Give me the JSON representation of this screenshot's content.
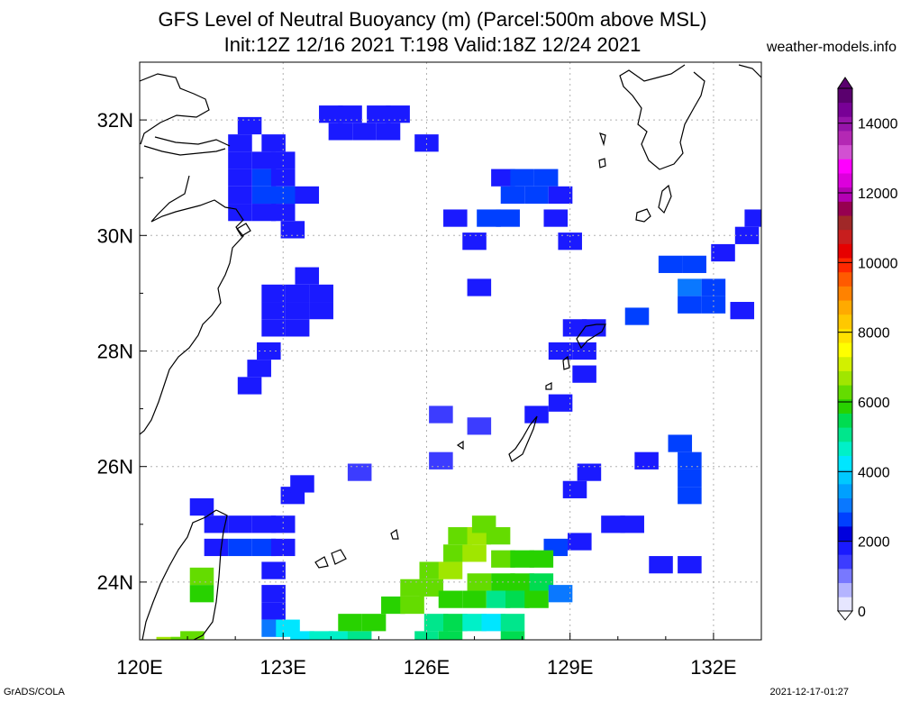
{
  "title_line1": "GFS Level of Neutral Buoyancy (m) (Parcel:500m above MSL)",
  "title_line2": "Init:12Z 12/16 2021 T:198 Valid:18Z 12/24 2021",
  "site": "weather-models.info",
  "footer_left": "GrADS/COLA",
  "footer_right": "2021-12-17-01:27",
  "lat_labels": [
    "32N",
    "30N",
    "28N",
    "26N",
    "24N"
  ],
  "lon_labels": [
    "120E",
    "123E",
    "126E",
    "129E",
    "132E"
  ],
  "colorbar": {
    "labels": [
      "14000",
      "12000",
      "10000",
      "8000",
      "6000",
      "4000",
      "2000",
      "0"
    ],
    "colors": [
      "#e6e6ff",
      "#b4b4ff",
      "#7878ff",
      "#3c3cff",
      "#1a1aff",
      "#0000dd",
      "#0040ff",
      "#0a78ff",
      "#00a0ff",
      "#00c8ff",
      "#00e6ff",
      "#00f0c8",
      "#00e68c",
      "#00dc50",
      "#28d200",
      "#64dc00",
      "#a0e600",
      "#d2f000",
      "#ffff00",
      "#ffe100",
      "#ffc800",
      "#ffaa00",
      "#ff8200",
      "#ff5a00",
      "#ff2800",
      "#e60000",
      "#c81e1e",
      "#a02828",
      "#960050",
      "#b400b4",
      "#dc00dc",
      "#ff00ff",
      "#d250d2",
      "#b428b4",
      "#9614aa",
      "#780096",
      "#5a006e"
    ]
  },
  "map": {
    "lon_range": [
      120,
      133
    ],
    "lat_range": [
      23,
      33
    ],
    "cells": [
      {
        "lat": 31.9,
        "lon": 122.3,
        "c": "#1a1aff"
      },
      {
        "lat": 31.6,
        "lon": 122.1,
        "c": "#1a1aff"
      },
      {
        "lat": 31.6,
        "lon": 122.8,
        "c": "#1a1aff"
      },
      {
        "lat": 31.3,
        "lon": 122.1,
        "c": "#1a1aff"
      },
      {
        "lat": 31.3,
        "lon": 122.6,
        "c": "#1a1aff"
      },
      {
        "lat": 31.3,
        "lon": 123.0,
        "c": "#1a1aff"
      },
      {
        "lat": 31.0,
        "lon": 122.1,
        "c": "#1a1aff"
      },
      {
        "lat": 31.0,
        "lon": 122.6,
        "c": "#0040ff"
      },
      {
        "lat": 31.0,
        "lon": 123.0,
        "c": "#1a1aff"
      },
      {
        "lat": 30.7,
        "lon": 122.1,
        "c": "#1a1aff"
      },
      {
        "lat": 30.7,
        "lon": 122.6,
        "c": "#0040ff"
      },
      {
        "lat": 30.7,
        "lon": 123.0,
        "c": "#0040ff"
      },
      {
        "lat": 30.7,
        "lon": 123.5,
        "c": "#1a1aff"
      },
      {
        "lat": 30.4,
        "lon": 122.1,
        "c": "#1a1aff"
      },
      {
        "lat": 30.4,
        "lon": 122.6,
        "c": "#1a1aff"
      },
      {
        "lat": 30.4,
        "lon": 123.0,
        "c": "#1a1aff"
      },
      {
        "lat": 30.1,
        "lon": 123.2,
        "c": "#1a1aff"
      },
      {
        "lat": 32.1,
        "lon": 124.0,
        "c": "#1a1aff"
      },
      {
        "lat": 32.1,
        "lon": 124.4,
        "c": "#1a1aff"
      },
      {
        "lat": 32.1,
        "lon": 125.0,
        "c": "#1a1aff"
      },
      {
        "lat": 32.1,
        "lon": 125.4,
        "c": "#1a1aff"
      },
      {
        "lat": 31.8,
        "lon": 124.2,
        "c": "#1a1aff"
      },
      {
        "lat": 31.8,
        "lon": 124.7,
        "c": "#1a1aff"
      },
      {
        "lat": 31.8,
        "lon": 125.2,
        "c": "#1a1aff"
      },
      {
        "lat": 31.6,
        "lon": 126.0,
        "c": "#1a1aff"
      },
      {
        "lat": 29.3,
        "lon": 123.5,
        "c": "#1a1aff"
      },
      {
        "lat": 29.0,
        "lon": 122.8,
        "c": "#1a1aff"
      },
      {
        "lat": 29.0,
        "lon": 123.3,
        "c": "#1a1aff"
      },
      {
        "lat": 29.0,
        "lon": 123.8,
        "c": "#1a1aff"
      },
      {
        "lat": 28.7,
        "lon": 122.8,
        "c": "#1a1aff"
      },
      {
        "lat": 28.7,
        "lon": 123.3,
        "c": "#1a1aff"
      },
      {
        "lat": 28.7,
        "lon": 123.8,
        "c": "#1a1aff"
      },
      {
        "lat": 28.4,
        "lon": 122.8,
        "c": "#1a1aff"
      },
      {
        "lat": 28.4,
        "lon": 123.3,
        "c": "#1a1aff"
      },
      {
        "lat": 28.0,
        "lon": 122.7,
        "c": "#1a1aff"
      },
      {
        "lat": 27.7,
        "lon": 122.5,
        "c": "#1a1aff"
      },
      {
        "lat": 27.4,
        "lon": 122.3,
        "c": "#1a1aff"
      },
      {
        "lat": 31.0,
        "lon": 127.6,
        "c": "#1a1aff"
      },
      {
        "lat": 31.0,
        "lon": 128.0,
        "c": "#0040ff"
      },
      {
        "lat": 31.0,
        "lon": 128.5,
        "c": "#0040ff"
      },
      {
        "lat": 30.7,
        "lon": 127.8,
        "c": "#0040ff"
      },
      {
        "lat": 30.7,
        "lon": 128.3,
        "c": "#0040ff"
      },
      {
        "lat": 30.7,
        "lon": 128.8,
        "c": "#1a1aff"
      },
      {
        "lat": 30.3,
        "lon": 127.3,
        "c": "#0040ff"
      },
      {
        "lat": 30.3,
        "lon": 127.7,
        "c": "#0040ff"
      },
      {
        "lat": 30.3,
        "lon": 128.7,
        "c": "#1a1aff"
      },
      {
        "lat": 30.3,
        "lon": 126.6,
        "c": "#1a1aff"
      },
      {
        "lat": 29.9,
        "lon": 127.0,
        "c": "#1a1aff"
      },
      {
        "lat": 29.9,
        "lon": 129.0,
        "c": "#1a1aff"
      },
      {
        "lat": 29.1,
        "lon": 127.1,
        "c": "#1a1aff"
      },
      {
        "lat": 28.4,
        "lon": 129.1,
        "c": "#1a1aff"
      },
      {
        "lat": 28.4,
        "lon": 129.5,
        "c": "#1a1aff"
      },
      {
        "lat": 28.6,
        "lon": 130.4,
        "c": "#0040ff"
      },
      {
        "lat": 28.0,
        "lon": 128.8,
        "c": "#1a1aff"
      },
      {
        "lat": 28.0,
        "lon": 129.3,
        "c": "#1a1aff"
      },
      {
        "lat": 27.6,
        "lon": 129.3,
        "c": "#1a1aff"
      },
      {
        "lat": 27.1,
        "lon": 128.8,
        "c": "#1a1aff"
      },
      {
        "lat": 26.9,
        "lon": 128.3,
        "c": "#1a1aff"
      },
      {
        "lat": 26.9,
        "lon": 126.3,
        "c": "#3c3cff"
      },
      {
        "lat": 26.7,
        "lon": 127.1,
        "c": "#3c3cff"
      },
      {
        "lat": 26.1,
        "lon": 126.3,
        "c": "#3c3cff"
      },
      {
        "lat": 25.9,
        "lon": 124.6,
        "c": "#3c3cff"
      },
      {
        "lat": 29.5,
        "lon": 131.1,
        "c": "#0040ff"
      },
      {
        "lat": 29.5,
        "lon": 131.6,
        "c": "#0040ff"
      },
      {
        "lat": 29.7,
        "lon": 132.2,
        "c": "#1a1aff"
      },
      {
        "lat": 29.1,
        "lon": 131.5,
        "c": "#0a78ff"
      },
      {
        "lat": 29.1,
        "lon": 132.0,
        "c": "#0040ff"
      },
      {
        "lat": 28.8,
        "lon": 131.5,
        "c": "#0040ff"
      },
      {
        "lat": 28.8,
        "lon": 132.0,
        "c": "#0040ff"
      },
      {
        "lat": 28.7,
        "lon": 132.6,
        "c": "#1a1aff"
      },
      {
        "lat": 30.0,
        "lon": 132.7,
        "c": "#1a1aff"
      },
      {
        "lat": 30.3,
        "lon": 132.9,
        "c": "#1a1aff"
      },
      {
        "lat": 26.4,
        "lon": 131.3,
        "c": "#0040ff"
      },
      {
        "lat": 26.1,
        "lon": 131.5,
        "c": "#0040ff"
      },
      {
        "lat": 25.8,
        "lon": 131.5,
        "c": "#0040ff"
      },
      {
        "lat": 25.5,
        "lon": 131.5,
        "c": "#0040ff"
      },
      {
        "lat": 26.1,
        "lon": 130.6,
        "c": "#1a1aff"
      },
      {
        "lat": 25.9,
        "lon": 129.4,
        "c": "#1a1aff"
      },
      {
        "lat": 25.6,
        "lon": 129.1,
        "c": "#1a1aff"
      },
      {
        "lat": 25.0,
        "lon": 129.9,
        "c": "#1a1aff"
      },
      {
        "lat": 25.0,
        "lon": 130.3,
        "c": "#1a1aff"
      },
      {
        "lat": 24.7,
        "lon": 129.2,
        "c": "#1a1aff"
      },
      {
        "lat": 24.6,
        "lon": 128.7,
        "c": "#0040ff"
      },
      {
        "lat": 24.3,
        "lon": 130.9,
        "c": "#1a1aff"
      },
      {
        "lat": 24.3,
        "lon": 131.5,
        "c": "#1a1aff"
      },
      {
        "lat": 25.5,
        "lon": 123.2,
        "c": "#1a1aff"
      },
      {
        "lat": 25.7,
        "lon": 123.4,
        "c": "#1a1aff"
      },
      {
        "lat": 25.3,
        "lon": 121.3,
        "c": "#1a1aff"
      },
      {
        "lat": 25.0,
        "lon": 121.6,
        "c": "#1a1aff"
      },
      {
        "lat": 25.0,
        "lon": 122.1,
        "c": "#1a1aff"
      },
      {
        "lat": 25.0,
        "lon": 122.6,
        "c": "#1a1aff"
      },
      {
        "lat": 25.0,
        "lon": 123.0,
        "c": "#1a1aff"
      },
      {
        "lat": 24.6,
        "lon": 121.6,
        "c": "#1a1aff"
      },
      {
        "lat": 24.6,
        "lon": 122.1,
        "c": "#0040ff"
      },
      {
        "lat": 24.6,
        "lon": 122.6,
        "c": "#0040ff"
      },
      {
        "lat": 24.6,
        "lon": 123.0,
        "c": "#1a1aff"
      },
      {
        "lat": 24.2,
        "lon": 122.8,
        "c": "#1a1aff"
      },
      {
        "lat": 23.8,
        "lon": 122.8,
        "c": "#1a1aff"
      },
      {
        "lat": 23.5,
        "lon": 122.8,
        "c": "#1a1aff"
      },
      {
        "lat": 23.2,
        "lon": 122.8,
        "c": "#0a78ff"
      },
      {
        "lat": 23.2,
        "lon": 123.1,
        "c": "#00e6ff"
      },
      {
        "lat": 24.1,
        "lon": 121.3,
        "c": "#64dc00"
      },
      {
        "lat": 23.8,
        "lon": 121.3,
        "c": "#28d200"
      },
      {
        "lat": 23.0,
        "lon": 121.1,
        "c": "#64dc00"
      },
      {
        "lat": 22.9,
        "lon": 120.6,
        "c": "#a0e600"
      },
      {
        "lat": 22.9,
        "lon": 120.9,
        "c": "#64dc00"
      },
      {
        "lat": 23.0,
        "lon": 123.4,
        "c": "#00e6ff"
      },
      {
        "lat": 23.0,
        "lon": 123.8,
        "c": "#00f0c8"
      },
      {
        "lat": 23.0,
        "lon": 124.2,
        "c": "#00f0c8"
      },
      {
        "lat": 23.0,
        "lon": 124.6,
        "c": "#00e68c"
      },
      {
        "lat": 23.3,
        "lon": 124.9,
        "c": "#28d200"
      },
      {
        "lat": 23.3,
        "lon": 124.4,
        "c": "#28d200"
      },
      {
        "lat": 23.6,
        "lon": 125.3,
        "c": "#28d200"
      },
      {
        "lat": 23.6,
        "lon": 125.7,
        "c": "#64dc00"
      },
      {
        "lat": 23.9,
        "lon": 125.7,
        "c": "#64dc00"
      },
      {
        "lat": 23.9,
        "lon": 126.1,
        "c": "#64dc00"
      },
      {
        "lat": 24.2,
        "lon": 126.1,
        "c": "#64dc00"
      },
      {
        "lat": 24.2,
        "lon": 126.5,
        "c": "#a0e600"
      },
      {
        "lat": 24.5,
        "lon": 126.6,
        "c": "#64dc00"
      },
      {
        "lat": 24.5,
        "lon": 127.0,
        "c": "#a0e600"
      },
      {
        "lat": 24.8,
        "lon": 126.7,
        "c": "#64dc00"
      },
      {
        "lat": 24.8,
        "lon": 127.1,
        "c": "#a0e600"
      },
      {
        "lat": 24.8,
        "lon": 127.5,
        "c": "#64dc00"
      },
      {
        "lat": 25.0,
        "lon": 127.2,
        "c": "#64dc00"
      },
      {
        "lat": 24.4,
        "lon": 127.6,
        "c": "#64dc00"
      },
      {
        "lat": 24.4,
        "lon": 128.0,
        "c": "#28d200"
      },
      {
        "lat": 24.4,
        "lon": 128.4,
        "c": "#28d200"
      },
      {
        "lat": 24.0,
        "lon": 127.1,
        "c": "#64dc00"
      },
      {
        "lat": 24.0,
        "lon": 127.6,
        "c": "#28d200"
      },
      {
        "lat": 24.0,
        "lon": 128.0,
        "c": "#28d200"
      },
      {
        "lat": 24.0,
        "lon": 128.4,
        "c": "#00dc50"
      },
      {
        "lat": 23.7,
        "lon": 126.5,
        "c": "#28d200"
      },
      {
        "lat": 23.7,
        "lon": 127.0,
        "c": "#28d200"
      },
      {
        "lat": 23.7,
        "lon": 127.5,
        "c": "#00e68c"
      },
      {
        "lat": 23.7,
        "lon": 127.9,
        "c": "#00dc50"
      },
      {
        "lat": 23.7,
        "lon": 128.3,
        "c": "#28d200"
      },
      {
        "lat": 23.8,
        "lon": 128.8,
        "c": "#0a78ff"
      },
      {
        "lat": 23.3,
        "lon": 126.2,
        "c": "#00e68c"
      },
      {
        "lat": 23.3,
        "lon": 126.6,
        "c": "#00dc50"
      },
      {
        "lat": 23.3,
        "lon": 127.0,
        "c": "#00f0c8"
      },
      {
        "lat": 23.3,
        "lon": 127.4,
        "c": "#00e6ff"
      },
      {
        "lat": 23.3,
        "lon": 127.8,
        "c": "#00e68c"
      },
      {
        "lat": 23.0,
        "lon": 126.0,
        "c": "#00e68c"
      },
      {
        "lat": 23.0,
        "lon": 126.5,
        "c": "#00dc50"
      },
      {
        "lat": 23.0,
        "lon": 127.8,
        "c": "#00dc50"
      }
    ]
  }
}
